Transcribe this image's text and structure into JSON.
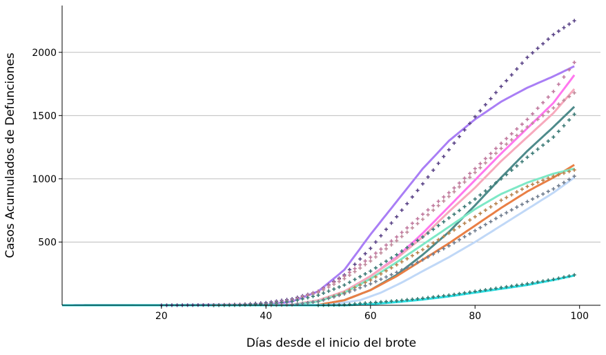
{
  "chart_data": {
    "type": "line",
    "title": "",
    "xlabel": "Días desde el inicio del brote",
    "ylabel": "Casos Acumulados de Defunciones",
    "xlim": [
      1,
      104
    ],
    "ylim": [
      0,
      2370
    ],
    "x_ticks": [
      20,
      40,
      60,
      80,
      100
    ],
    "y_ticks": [
      500,
      1000,
      1500,
      2000
    ],
    "grid": "horizontal",
    "legend": "none",
    "series": [
      {
        "style": "fit-line",
        "color": "#a97ef5",
        "points": [
          [
            1,
            0
          ],
          [
            40,
            5
          ],
          [
            45,
            30
          ],
          [
            50,
            110
          ],
          [
            55,
            280
          ],
          [
            60,
            560
          ],
          [
            65,
            820
          ],
          [
            70,
            1080
          ],
          [
            75,
            1300
          ],
          [
            80,
            1470
          ],
          [
            85,
            1610
          ],
          [
            90,
            1720
          ],
          [
            95,
            1810
          ],
          [
            99,
            1890
          ]
        ]
      },
      {
        "style": "fit-line",
        "color": "#ff77ee",
        "points": [
          [
            1,
            0
          ],
          [
            45,
            5
          ],
          [
            50,
            35
          ],
          [
            55,
            110
          ],
          [
            60,
            230
          ],
          [
            65,
            380
          ],
          [
            70,
            570
          ],
          [
            75,
            780
          ],
          [
            80,
            990
          ],
          [
            85,
            1200
          ],
          [
            90,
            1400
          ],
          [
            95,
            1600
          ],
          [
            99,
            1820
          ]
        ]
      },
      {
        "style": "fit-line",
        "color": "#f7a9bd",
        "points": [
          [
            1,
            0
          ],
          [
            45,
            5
          ],
          [
            50,
            40
          ],
          [
            55,
            110
          ],
          [
            60,
            230
          ],
          [
            65,
            370
          ],
          [
            70,
            540
          ],
          [
            75,
            740
          ],
          [
            80,
            930
          ],
          [
            85,
            1140
          ],
          [
            90,
            1330
          ],
          [
            95,
            1520
          ],
          [
            99,
            1710
          ]
        ]
      },
      {
        "style": "fit-line",
        "color": "#4e8b8b",
        "points": [
          [
            1,
            0
          ],
          [
            50,
            3
          ],
          [
            55,
            40
          ],
          [
            60,
            120
          ],
          [
            65,
            240
          ],
          [
            70,
            400
          ],
          [
            75,
            580
          ],
          [
            80,
            790
          ],
          [
            85,
            1010
          ],
          [
            90,
            1220
          ],
          [
            95,
            1410
          ],
          [
            99,
            1570
          ]
        ]
      },
      {
        "style": "fit-line",
        "color": "#e97f45",
        "points": [
          [
            1,
            0
          ],
          [
            50,
            3
          ],
          [
            55,
            40
          ],
          [
            60,
            120
          ],
          [
            65,
            230
          ],
          [
            70,
            360
          ],
          [
            75,
            490
          ],
          [
            80,
            630
          ],
          [
            85,
            770
          ],
          [
            90,
            900
          ],
          [
            95,
            1010
          ],
          [
            99,
            1110
          ]
        ]
      },
      {
        "style": "fit-line",
        "color": "#7de8c6",
        "points": [
          [
            1,
            0
          ],
          [
            45,
            3
          ],
          [
            50,
            30
          ],
          [
            55,
            100
          ],
          [
            60,
            210
          ],
          [
            65,
            340
          ],
          [
            70,
            480
          ],
          [
            75,
            620
          ],
          [
            80,
            760
          ],
          [
            85,
            880
          ],
          [
            90,
            970
          ],
          [
            95,
            1040
          ],
          [
            99,
            1080
          ]
        ]
      },
      {
        "style": "fit-line",
        "color": "#c0d8f7",
        "points": [
          [
            1,
            0
          ],
          [
            52,
            3
          ],
          [
            58,
            40
          ],
          [
            62,
            100
          ],
          [
            66,
            180
          ],
          [
            70,
            270
          ],
          [
            75,
            380
          ],
          [
            80,
            500
          ],
          [
            85,
            630
          ],
          [
            90,
            760
          ],
          [
            95,
            890
          ],
          [
            99,
            1010
          ]
        ]
      },
      {
        "style": "fit-line",
        "color": "#29dce0",
        "points": [
          [
            1,
            0
          ],
          [
            55,
            0
          ],
          [
            60,
            8
          ],
          [
            65,
            25
          ],
          [
            70,
            45
          ],
          [
            75,
            70
          ],
          [
            80,
            100
          ],
          [
            85,
            130
          ],
          [
            90,
            160
          ],
          [
            95,
            200
          ],
          [
            99,
            235
          ]
        ]
      },
      {
        "style": "observed",
        "color": "#5a4387",
        "points": [
          [
            20,
            0
          ],
          [
            25,
            1
          ],
          [
            30,
            2
          ],
          [
            35,
            6
          ],
          [
            40,
            20
          ],
          [
            45,
            50
          ],
          [
            50,
            110
          ],
          [
            55,
            240
          ],
          [
            60,
            450
          ],
          [
            65,
            700
          ],
          [
            70,
            960
          ],
          [
            75,
            1230
          ],
          [
            80,
            1490
          ],
          [
            85,
            1730
          ],
          [
            90,
            1960
          ],
          [
            95,
            2140
          ],
          [
            99,
            2250
          ]
        ]
      },
      {
        "style": "observed",
        "color": "#c0789e",
        "points": [
          [
            30,
            0
          ],
          [
            35,
            3
          ],
          [
            40,
            10
          ],
          [
            45,
            40
          ],
          [
            50,
            110
          ],
          [
            55,
            230
          ],
          [
            60,
            380
          ],
          [
            65,
            540
          ],
          [
            70,
            720
          ],
          [
            75,
            890
          ],
          [
            80,
            1080
          ],
          [
            85,
            1280
          ],
          [
            90,
            1470
          ],
          [
            95,
            1690
          ],
          [
            99,
            1920
          ]
        ]
      },
      {
        "style": "observed",
        "color": "#c08a9b",
        "points": [
          [
            30,
            0
          ],
          [
            35,
            3
          ],
          [
            40,
            10
          ],
          [
            45,
            40
          ],
          [
            50,
            100
          ],
          [
            55,
            210
          ],
          [
            60,
            350
          ],
          [
            65,
            510
          ],
          [
            70,
            680
          ],
          [
            75,
            860
          ],
          [
            80,
            1050
          ],
          [
            85,
            1240
          ],
          [
            90,
            1410
          ],
          [
            95,
            1560
          ],
          [
            99,
            1680
          ]
        ]
      },
      {
        "style": "observed",
        "color": "#3c7a76",
        "points": [
          [
            30,
            0
          ],
          [
            35,
            3
          ],
          [
            40,
            8
          ],
          [
            45,
            30
          ],
          [
            50,
            80
          ],
          [
            55,
            160
          ],
          [
            60,
            270
          ],
          [
            65,
            400
          ],
          [
            70,
            540
          ],
          [
            75,
            690
          ],
          [
            80,
            840
          ],
          [
            85,
            1000
          ],
          [
            90,
            1170
          ],
          [
            95,
            1330
          ],
          [
            99,
            1510
          ]
        ]
      },
      {
        "style": "observed",
        "color": "#b8844f",
        "points": [
          [
            40,
            0
          ],
          [
            45,
            5
          ],
          [
            50,
            30
          ],
          [
            55,
            100
          ],
          [
            60,
            200
          ],
          [
            65,
            320
          ],
          [
            70,
            440
          ],
          [
            75,
            570
          ],
          [
            80,
            700
          ],
          [
            85,
            830
          ],
          [
            90,
            940
          ],
          [
            95,
            1020
          ],
          [
            99,
            1070
          ]
        ]
      },
      {
        "style": "observed",
        "color": "#707d8f",
        "points": [
          [
            40,
            0
          ],
          [
            45,
            5
          ],
          [
            50,
            30
          ],
          [
            55,
            90
          ],
          [
            60,
            170
          ],
          [
            65,
            260
          ],
          [
            70,
            360
          ],
          [
            75,
            470
          ],
          [
            80,
            590
          ],
          [
            85,
            710
          ],
          [
            90,
            820
          ],
          [
            95,
            920
          ],
          [
            99,
            1020
          ]
        ]
      },
      {
        "style": "observed",
        "color": "#2f7a72",
        "points": [
          [
            50,
            0
          ],
          [
            55,
            5
          ],
          [
            60,
            20
          ],
          [
            65,
            35
          ],
          [
            70,
            55
          ],
          [
            75,
            80
          ],
          [
            80,
            110
          ],
          [
            85,
            140
          ],
          [
            90,
            170
          ],
          [
            95,
            205
          ],
          [
            99,
            240
          ]
        ]
      }
    ]
  }
}
